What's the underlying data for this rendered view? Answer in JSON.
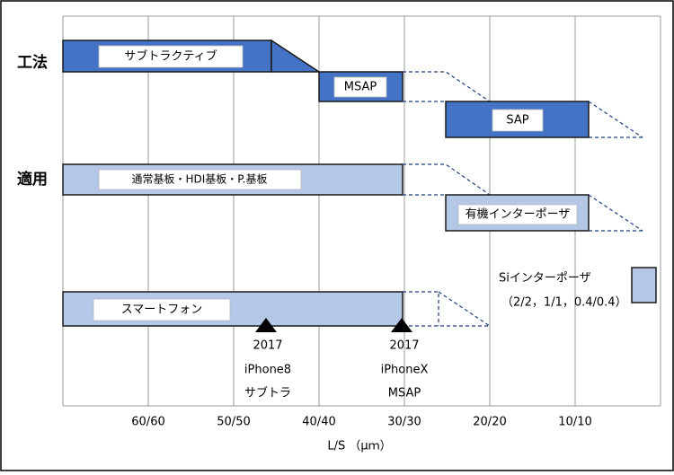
{
  "rows": {
    "method": "工法",
    "application": "適用"
  },
  "bars": {
    "subtractive": "サブトラクティブ",
    "msap": "MSAP",
    "sap": "SAP",
    "general": "通常基板・HDI基板・P.基板",
    "organic": "有機インターポーザ",
    "smartphone": "スマートフォン"
  },
  "si": {
    "label": "Siインターポーザ",
    "range": "（2/2，1/1，0.4/0.4）"
  },
  "milestones": [
    {
      "year": "2017",
      "device": "iPhone8",
      "method": "サブトラ"
    },
    {
      "year": "2017",
      "device": "iPhoneX",
      "method": "MSAP"
    }
  ],
  "x_axis": {
    "categories": [
      "60/60",
      "50/50",
      "40/40",
      "30/30",
      "20/20",
      "10/10"
    ],
    "title": "L/S （μｍ）"
  }
}
